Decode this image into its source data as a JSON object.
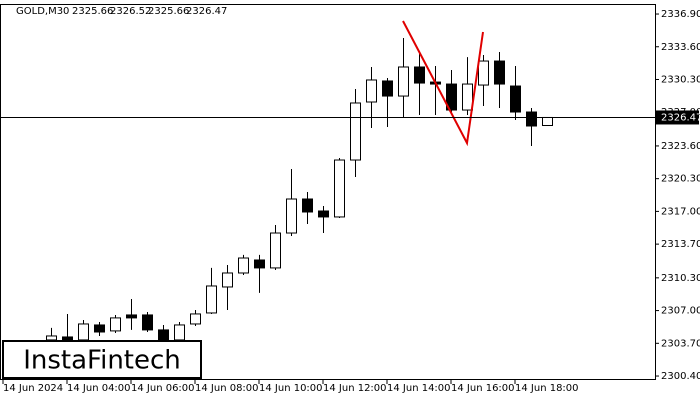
{
  "chart_data": {
    "type": "candlestick",
    "title": "GOLD,M30",
    "categories": [
      "14 Jun 2024",
      null,
      null,
      null,
      "14 Jun 04:00",
      null,
      null,
      null,
      "14 Jun 06:00",
      null,
      null,
      null,
      "14 Jun 08:00",
      null,
      null,
      null,
      "14 Jun 10:00",
      null,
      null,
      null,
      "14 Jun 12:00",
      null,
      null,
      null,
      "14 Jun 14:00",
      null,
      null,
      null,
      "14 Jun 16:00",
      null,
      null,
      null,
      "14 Jun 18:00",
      null,
      null
    ],
    "open": [
      null,
      null,
      null,
      2304.04,
      2304.34,
      2304.04,
      2305.55,
      2304.95,
      2306.56,
      2306.56,
      2305.05,
      2304.04,
      2305.65,
      2306.76,
      2309.38,
      2310.79,
      2312.1,
      2311.3,
      2314.82,
      2318.25,
      2317.04,
      2316.44,
      2322.18,
      2328.03,
      2330.15,
      2328.63,
      2331.56,
      2330.04,
      2329.84,
      2327.22,
      2329.74,
      2332.16,
      2329.64,
      2327.02,
      2325.66
    ],
    "high": [
      null,
      null,
      null,
      2305.25,
      2306.66,
      2306.05,
      2305.85,
      2306.56,
      2308.17,
      2306.86,
      2305.55,
      2305.85,
      2307.06,
      2311.3,
      2311.6,
      2312.61,
      2312.61,
      2315.63,
      2321.27,
      2318.96,
      2317.55,
      2322.38,
      2329.34,
      2331.56,
      2330.45,
      2334.48,
      2333.07,
      2331.66,
      2331.25,
      2332.56,
      2332.77,
      2333.07,
      2331.66,
      2327.42,
      2326.52
    ],
    "low": [
      null,
      null,
      null,
      2303.53,
      2303.53,
      2303.84,
      2304.44,
      2304.74,
      2305.05,
      2304.84,
      2303.53,
      2303.84,
      2305.45,
      2306.66,
      2307.06,
      2310.59,
      2308.78,
      2311.09,
      2314.52,
      2315.73,
      2314.82,
      2316.34,
      2320.47,
      2325.41,
      2325.51,
      2326.42,
      2326.72,
      2326.72,
      2327.02,
      2326.72,
      2327.63,
      2327.42,
      2326.21,
      2323.59,
      2325.66
    ],
    "close": [
      null,
      null,
      null,
      2304.44,
      2304.04,
      2305.65,
      2304.84,
      2306.26,
      2306.26,
      2305.05,
      2304.04,
      2305.55,
      2306.66,
      2309.48,
      2310.79,
      2312.3,
      2311.3,
      2314.82,
      2318.25,
      2316.94,
      2316.44,
      2322.18,
      2327.93,
      2330.25,
      2328.63,
      2331.56,
      2329.94,
      2329.84,
      2327.22,
      2329.84,
      2332.16,
      2329.84,
      2327.02,
      2325.61,
      2326.47
    ],
    "up_color": "#ffffff",
    "down_color": "#000000",
    "ylim": [
      2300.0,
      2337.81
    ],
    "yticks": [
      {
        "value": 2336.9,
        "label": "2336.90"
      },
      {
        "value": 2333.6,
        "label": "2333.60"
      },
      {
        "value": 2330.3,
        "label": "2330.30"
      },
      {
        "value": 2327.0,
        "label": "2327.00"
      },
      {
        "value": 2323.6,
        "label": "2323.60"
      },
      {
        "value": 2320.3,
        "label": "2320.30"
      },
      {
        "value": 2317.0,
        "label": "2317.00"
      },
      {
        "value": 2313.7,
        "label": "2313.70"
      },
      {
        "value": 2310.3,
        "label": "2310.30"
      },
      {
        "value": 2307.0,
        "label": "2307.00"
      },
      {
        "value": 2303.7,
        "label": "2303.70"
      },
      {
        "value": 2300.4,
        "label": "2300.40"
      }
    ],
    "current_price": 2326.47,
    "watermark": "InstaFintech"
  }
}
